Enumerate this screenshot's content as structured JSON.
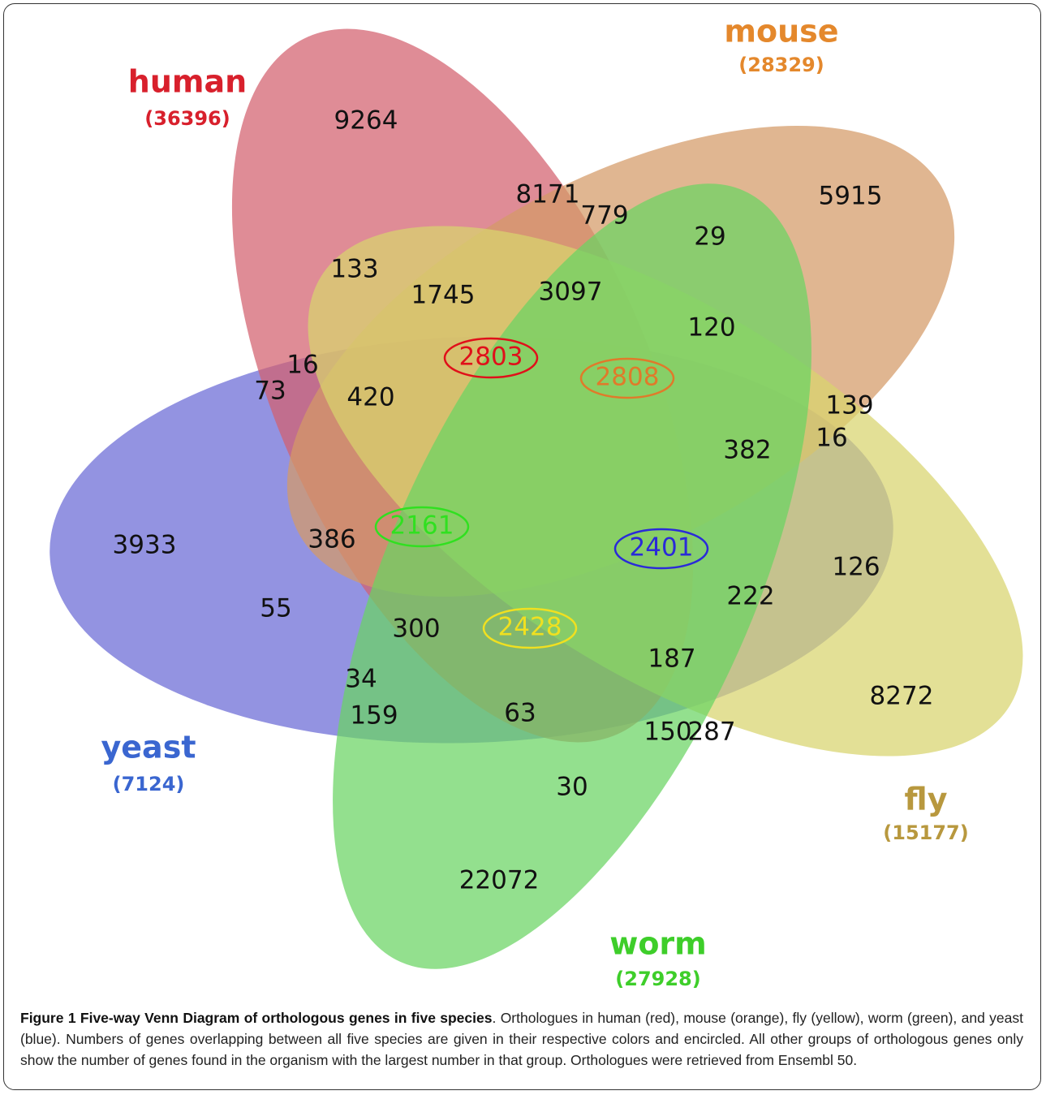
{
  "sets": [
    {
      "name": "human",
      "count": "(36396)",
      "color": "#d2606e"
    },
    {
      "name": "mouse",
      "count": "(28329)",
      "color": "#d49a66"
    },
    {
      "name": "fly",
      "count": "(15177)",
      "color": "#d8d46e"
    },
    {
      "name": "worm",
      "count": "(27928)",
      "color": "#6ad462"
    },
    {
      "name": "yeast",
      "count": "(7124)",
      "color": "#6a6ad6"
    }
  ],
  "regions": [
    "9264",
    "8171",
    "779",
    "29",
    "5915",
    "133",
    "1745",
    "3097",
    "120",
    "16",
    "73",
    "420",
    "139",
    "16",
    "382",
    "3933",
    "386",
    "126",
    "222",
    "55",
    "300",
    "187",
    "34",
    "8272",
    "159",
    "63",
    "150",
    "287",
    "30",
    "22072"
  ],
  "core": [
    {
      "value": "2803",
      "set": "human"
    },
    {
      "value": "2808",
      "set": "mouse"
    },
    {
      "value": "2161",
      "set": "yeast"
    },
    {
      "value": "2401",
      "set": "fly"
    },
    {
      "value": "2428",
      "set": "worm"
    }
  ],
  "caption": {
    "title": "Figure 1 Five-way Venn Diagram of orthologous genes in five species",
    "text": ". Orthologues in human (red), mouse (orange), fly (yellow), worm (green), and yeast (blue). Numbers of genes overlapping between all five species are given in their respective colors and encircled. All other groups of orthologous genes only show the number of genes found in the organism with the largest number in that group. Orthologues were retrieved from Ensembl 50."
  }
}
